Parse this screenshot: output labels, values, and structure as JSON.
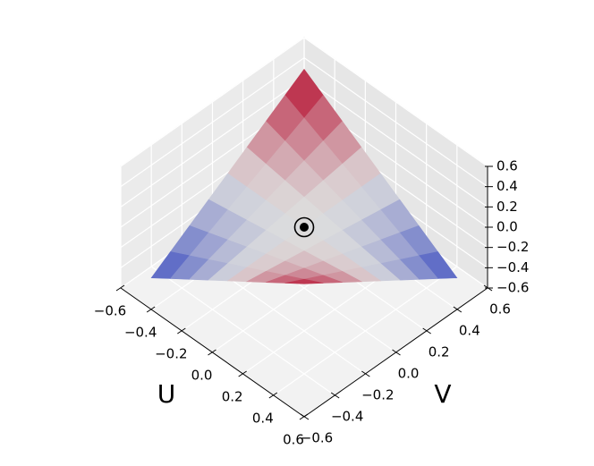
{
  "chart_data": {
    "type": "surface",
    "x_label": "U",
    "y_label": "V",
    "x": [
      -0.5,
      -0.375,
      -0.25,
      -0.125,
      0,
      0.125,
      0.25,
      0.375,
      0.5
    ],
    "y": [
      -0.5,
      -0.375,
      -0.25,
      -0.125,
      0,
      0.125,
      0.25,
      0.375,
      0.5
    ],
    "z": [
      [
        -0.5,
        -0.375,
        -0.25,
        -0.125,
        0,
        0.125,
        0.25,
        0.375,
        0.5
      ],
      [
        -0.375,
        -0.28125,
        -0.1875,
        -0.09375,
        0,
        0.09375,
        0.1875,
        0.28125,
        0.375
      ],
      [
        -0.25,
        -0.1875,
        -0.125,
        -0.0625,
        0,
        0.0625,
        0.125,
        0.1875,
        0.25
      ],
      [
        -0.125,
        -0.09375,
        -0.0625,
        -0.03125,
        0,
        0.03125,
        0.0625,
        0.09375,
        0.125
      ],
      [
        0,
        0,
        0,
        0,
        0,
        0,
        0,
        0,
        0
      ],
      [
        0.125,
        0.09375,
        0.0625,
        0.03125,
        0,
        -0.03125,
        -0.0625,
        -0.09375,
        -0.125
      ],
      [
        0.25,
        0.1875,
        0.125,
        0.0625,
        0,
        -0.0625,
        -0.125,
        -0.1875,
        -0.25
      ],
      [
        0.375,
        0.28125,
        0.1875,
        0.09375,
        0,
        -0.09375,
        -0.1875,
        -0.28125,
        -0.375
      ],
      [
        0.5,
        0.375,
        0.25,
        0.125,
        0,
        -0.125,
        -0.25,
        -0.375,
        -0.5
      ]
    ],
    "xlim": [
      -0.6,
      0.6
    ],
    "ylim": [
      -0.6,
      0.6
    ],
    "zlim": [
      -0.6,
      0.6
    ],
    "xticks": [
      {
        "value": -0.6,
        "label": "−0.6"
      },
      {
        "value": -0.4,
        "label": "−0.4"
      },
      {
        "value": -0.2,
        "label": "−0.2"
      },
      {
        "value": 0,
        "label": "0.0"
      },
      0.2,
      0.4,
      0.6
    ],
    "yticks": [
      {
        "value": -0.6,
        "label": "−0.6"
      },
      {
        "value": -0.4,
        "label": "−0.4"
      },
      {
        "value": -0.2,
        "label": "−0.2"
      },
      {
        "value": 0,
        "label": "0.0"
      },
      0.2,
      0.4,
      0.6
    ],
    "zticks": [
      {
        "value": -0.6,
        "label": "−0.6"
      },
      {
        "value": -0.4,
        "label": "−0.4"
      },
      {
        "value": -0.2,
        "label": "−0.2"
      },
      {
        "value": 0,
        "label": "0.0"
      },
      0.2,
      0.4,
      0.6
    ],
    "colors": [
      "#3b4cc0",
      "#dddddd",
      "#b40426"
    ],
    "marker": {
      "x": 0,
      "y": 0,
      "z": 0
    },
    "grid": true
  }
}
